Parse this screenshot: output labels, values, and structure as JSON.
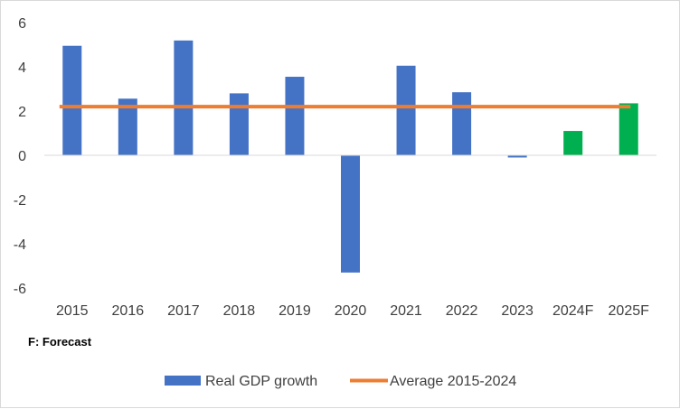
{
  "chart_data": {
    "type": "bar",
    "title": "",
    "xlabel": "",
    "ylabel": "",
    "categories": [
      "2015",
      "2016",
      "2017",
      "2018",
      "2019",
      "2020",
      "2021",
      "2022",
      "2023",
      "2024F",
      "2025F"
    ],
    "series": [
      {
        "name": "Real GDP growth",
        "type": "bar",
        "values": [
          4.95,
          2.56,
          5.19,
          2.8,
          3.55,
          -5.3,
          4.05,
          2.85,
          -0.1,
          1.1,
          2.35
        ],
        "color": "#4472c4",
        "forecast_color": "#00b050",
        "forecast_categories": [
          "2024F",
          "2025F"
        ]
      },
      {
        "name": "Average 2015-2024",
        "type": "line",
        "value": 2.2,
        "color": "#ed7d31"
      }
    ],
    "ylim": [
      -6,
      6
    ],
    "yticks": [
      6,
      4,
      2,
      0,
      -2,
      -4,
      -6
    ],
    "grid": false,
    "legend_position": "bottom",
    "note": "F: Forecast"
  }
}
